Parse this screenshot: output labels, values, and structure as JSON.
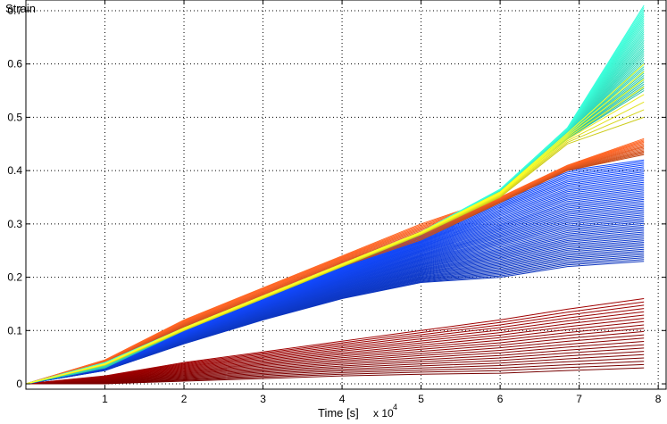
{
  "chart_data": {
    "type": "line",
    "title": "",
    "xlabel": "Time [s]",
    "x_multiplier_label": "x 10",
    "x_multiplier_exponent": "4",
    "ylabel": "Strain",
    "xlim": [
      0,
      8.1
    ],
    "ylim": [
      -0.01,
      0.72
    ],
    "x_ticks": [
      1,
      2,
      3,
      4,
      5,
      6,
      7,
      8
    ],
    "y_ticks": [
      0,
      0.1,
      0.2,
      0.3,
      0.4,
      0.5,
      0.6,
      0.7
    ],
    "grid": true,
    "grid_style": "dotted",
    "x": [
      0,
      1,
      2,
      3,
      4,
      5,
      6,
      6.85,
      7.82
    ],
    "series_groups": [
      {
        "name": "cyan-green (high strain)",
        "color": "#33e0c0",
        "count": 40,
        "values_low": [
          0,
          0.03,
          0.1,
          0.16,
          0.22,
          0.28,
          0.36,
          0.46,
          0.55
        ],
        "values_high": [
          0,
          0.04,
          0.105,
          0.165,
          0.225,
          0.285,
          0.365,
          0.48,
          0.71
        ]
      },
      {
        "name": "yellow",
        "color": "#f0f020",
        "count": 8,
        "values_low": [
          0,
          0.035,
          0.1,
          0.16,
          0.22,
          0.28,
          0.35,
          0.45,
          0.5
        ],
        "values_high": [
          0,
          0.038,
          0.105,
          0.165,
          0.225,
          0.285,
          0.36,
          0.47,
          0.6
        ]
      },
      {
        "name": "blue band",
        "color": "#1040e0",
        "count": 60,
        "values_low": [
          0,
          0.025,
          0.075,
          0.12,
          0.16,
          0.19,
          0.2,
          0.22,
          0.23
        ],
        "values_high": [
          0,
          0.035,
          0.1,
          0.16,
          0.22,
          0.28,
          0.35,
          0.4,
          0.42
        ]
      },
      {
        "name": "orange",
        "color": "#e85a20",
        "count": 14,
        "values_low": [
          0,
          0.04,
          0.105,
          0.16,
          0.22,
          0.27,
          0.34,
          0.4,
          0.43
        ],
        "values_high": [
          0,
          0.045,
          0.12,
          0.18,
          0.24,
          0.3,
          0.35,
          0.41,
          0.46
        ]
      },
      {
        "name": "dark red (low strain)",
        "color": "#8b0000",
        "count": 22,
        "values_low": [
          0,
          0.0,
          0.005,
          0.01,
          0.015,
          0.018,
          0.02,
          0.025,
          0.03
        ],
        "values_high": [
          0,
          0.015,
          0.04,
          0.06,
          0.08,
          0.1,
          0.12,
          0.14,
          0.16
        ]
      }
    ]
  }
}
